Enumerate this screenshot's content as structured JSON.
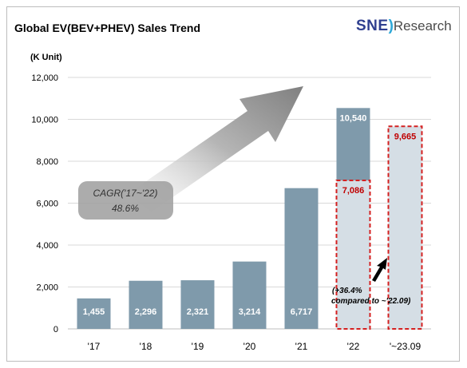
{
  "chart_data": {
    "type": "bar",
    "title": "Global EV(BEV+PHEV)  Sales Trend",
    "unit_label": "(K Unit)",
    "categories": [
      "'17",
      "'18",
      "'19",
      "'20",
      "'21",
      "'22",
      "'~23.09"
    ],
    "values": [
      1455,
      2296,
      2321,
      3214,
      6717,
      10540,
      9665
    ],
    "value_labels": [
      "1,455",
      "2,296",
      "2,321",
      "3,214",
      "6,717",
      "10,540",
      "9,665"
    ],
    "ytd_22_value": 7086,
    "ytd_22_label": "7,086",
    "ylim": [
      0,
      12000
    ],
    "yticks": [
      0,
      2000,
      4000,
      6000,
      8000,
      10000,
      12000
    ],
    "ytick_labels": [
      "0",
      "2,000",
      "4,000",
      "6,000",
      "8,000",
      "10,000",
      "12,000"
    ],
    "grid": true,
    "annotations": {
      "cagr_line1": "CAGR('17~'22)",
      "cagr_line2": "48.6%",
      "growth_line1": "(+36.4%",
      "growth_line2": "compared to ~'22.09)"
    },
    "colors": {
      "bar": "#7f9aab",
      "ytd_fill": "#d5dee5",
      "ytd_border": "#d42020",
      "red_label": "#c00000",
      "grid": "#d9d9d9"
    }
  },
  "logo": {
    "brand": "SNE",
    "name": "Research"
  }
}
